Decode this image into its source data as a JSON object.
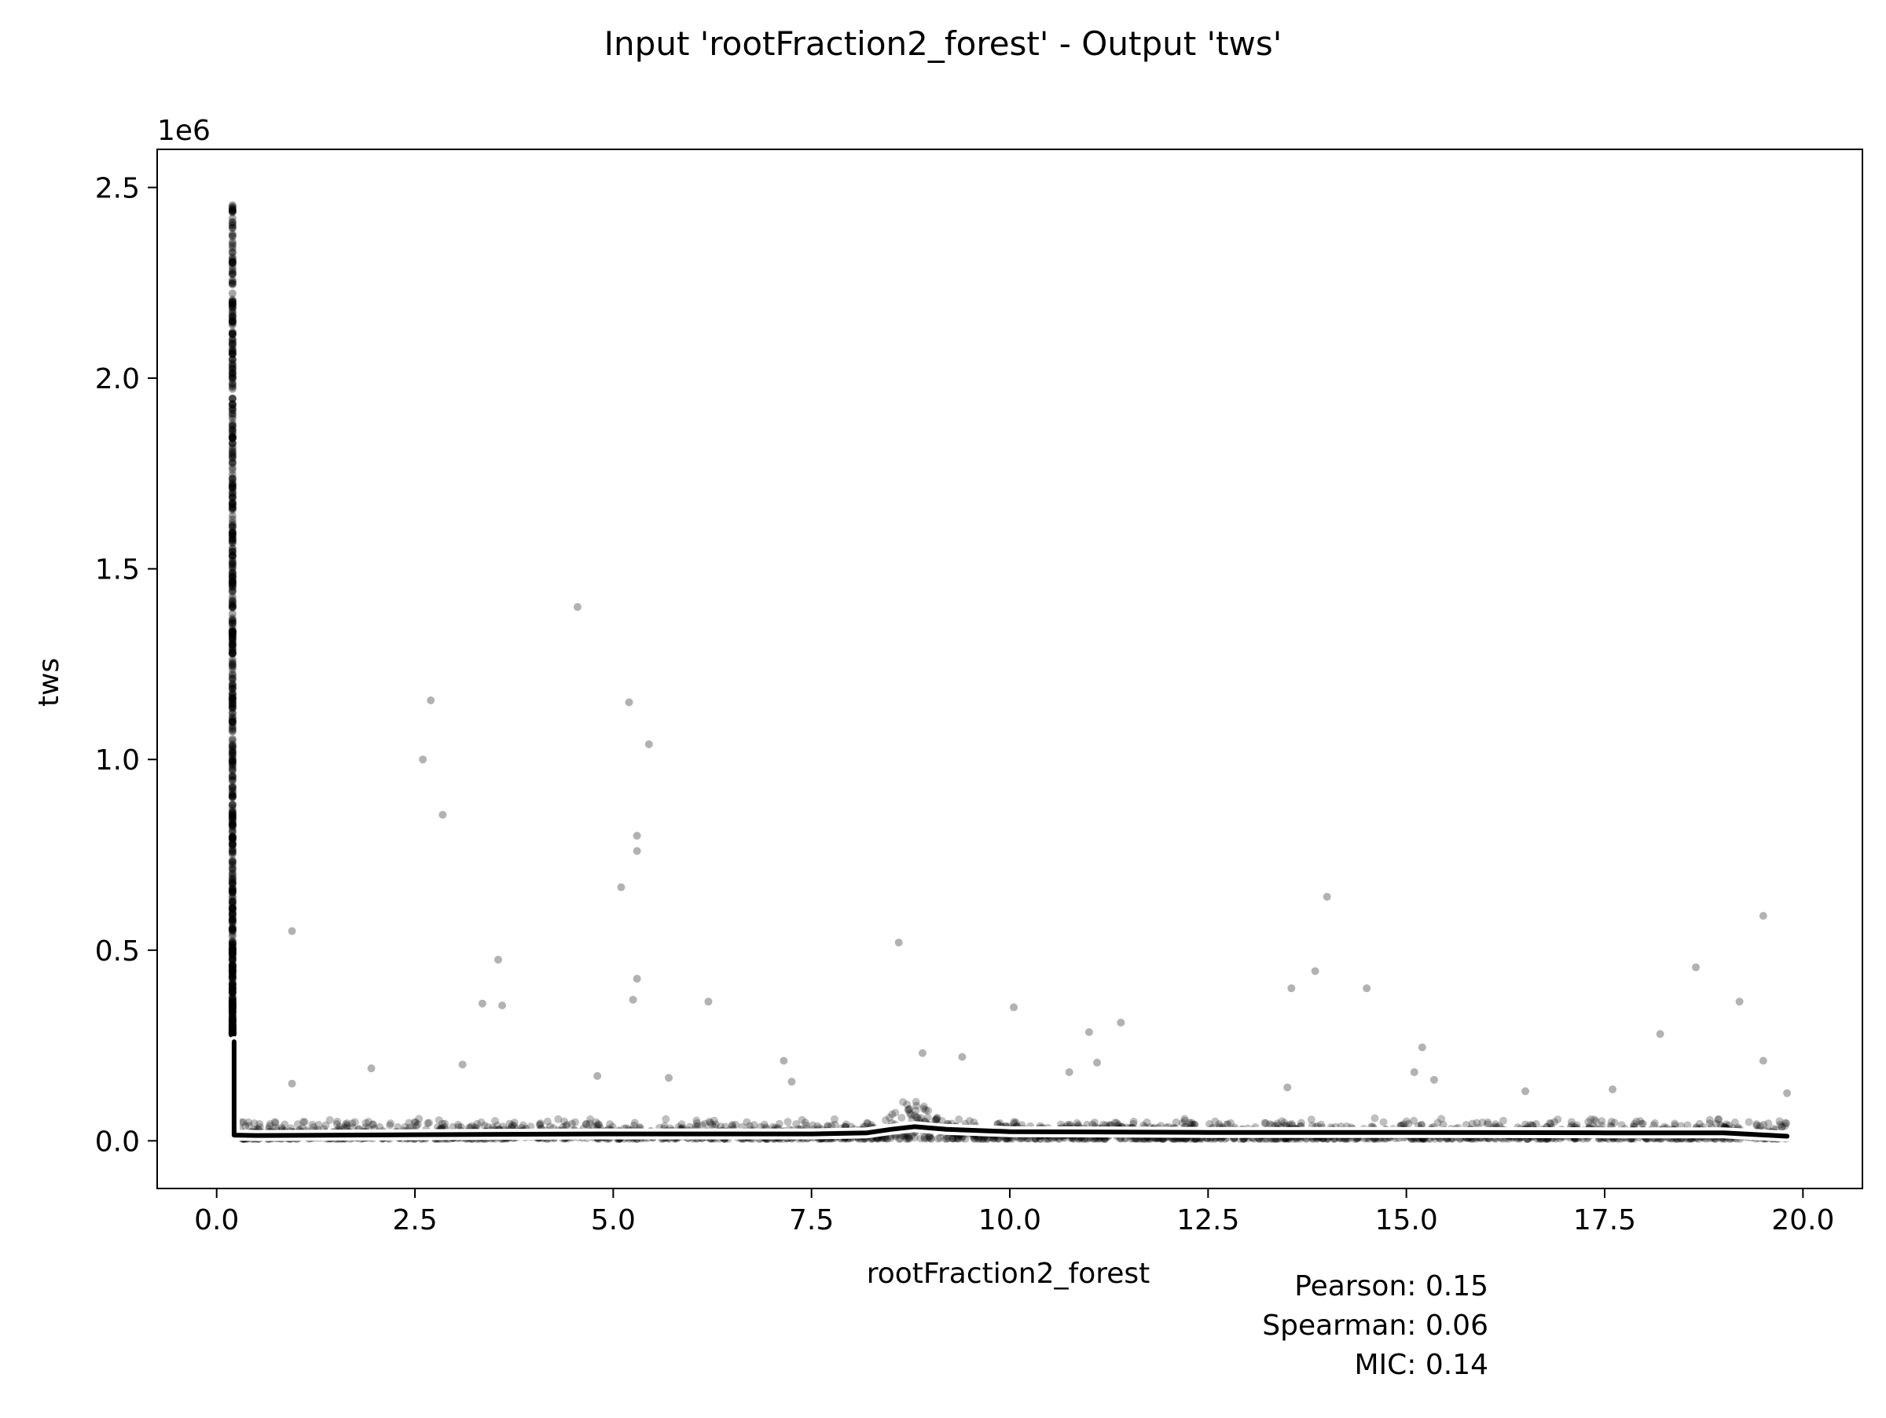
{
  "figure": {
    "title": "Input 'rootFraction2_forest' - Output 'tws'",
    "stats": {
      "pearson": "Pearson: 0.15",
      "spearman": "Spearman: 0.06",
      "mic": "MIC: 0.14"
    }
  },
  "chart_data": {
    "type": "scatter",
    "title": "Input 'rootFraction2_forest' - Output 'tws'",
    "xlabel": "rootFraction2_forest",
    "ylabel": "tws",
    "y_offset_label": "1e6",
    "xlim": [
      -0.75,
      20.75
    ],
    "ylim": [
      -125000,
      2600000
    ],
    "x_ticks": [
      0.0,
      2.5,
      5.0,
      7.5,
      10.0,
      12.5,
      15.0,
      17.5,
      20.0
    ],
    "x_tick_labels": [
      "0.0",
      "2.5",
      "5.0",
      "7.5",
      "10.0",
      "12.5",
      "15.0",
      "17.5",
      "20.0"
    ],
    "y_ticks": [
      0,
      500000,
      1000000,
      1500000,
      2000000,
      2500000
    ],
    "y_tick_labels": [
      "0.0",
      "0.5",
      "1.0",
      "1.5",
      "2.0",
      "2.5"
    ],
    "grid": false,
    "legend": "none",
    "point_color": "#000000",
    "point_opacity": 0.25,
    "line_color": "#000000",
    "line_outline_color": "#ffffff",
    "series": [
      {
        "kind": "scatter",
        "points": [
          [
            0.2,
            2450000
          ],
          [
            0.2,
            2400000
          ],
          [
            0.2,
            2300000
          ],
          [
            0.2,
            2200000
          ],
          [
            0.2,
            2100000
          ],
          [
            0.2,
            2000000
          ],
          [
            0.2,
            1900000
          ],
          [
            0.2,
            1800000
          ],
          [
            0.2,
            1700000
          ],
          [
            0.2,
            1600000
          ],
          [
            0.2,
            1500000
          ],
          [
            0.2,
            1400000
          ],
          [
            0.2,
            1300000
          ],
          [
            0.2,
            1200000
          ],
          [
            0.2,
            1100000
          ],
          [
            0.2,
            1000000
          ],
          [
            0.2,
            900000
          ],
          [
            0.2,
            800000
          ],
          [
            0.2,
            700000
          ],
          [
            0.2,
            600000
          ],
          [
            0.2,
            500000
          ],
          [
            0.2,
            400000
          ],
          [
            0.2,
            300000
          ],
          [
            0.95,
            550000
          ],
          [
            2.6,
            1000000
          ],
          [
            2.7,
            1155000
          ],
          [
            2.85,
            855000
          ],
          [
            3.35,
            360000
          ],
          [
            3.55,
            475000
          ],
          [
            3.6,
            355000
          ],
          [
            4.55,
            1400000
          ],
          [
            5.1,
            665000
          ],
          [
            5.2,
            1150000
          ],
          [
            5.25,
            370000
          ],
          [
            5.3,
            800000
          ],
          [
            5.3,
            760000
          ],
          [
            5.3,
            425000
          ],
          [
            5.45,
            1040000
          ],
          [
            6.2,
            365000
          ],
          [
            8.6,
            520000
          ],
          [
            10.05,
            350000
          ],
          [
            11.0,
            285000
          ],
          [
            11.4,
            310000
          ],
          [
            13.55,
            400000
          ],
          [
            13.85,
            445000
          ],
          [
            14.0,
            640000
          ],
          [
            14.5,
            400000
          ],
          [
            15.2,
            245000
          ],
          [
            18.2,
            280000
          ],
          [
            18.65,
            455000
          ],
          [
            19.2,
            365000
          ],
          [
            19.5,
            590000
          ],
          [
            19.5,
            210000
          ],
          [
            1.95,
            190000
          ],
          [
            3.1,
            200000
          ],
          [
            7.15,
            210000
          ],
          [
            8.9,
            230000
          ],
          [
            9.4,
            220000
          ],
          [
            15.35,
            160000
          ],
          [
            15.1,
            180000
          ],
          [
            10.75,
            180000
          ],
          [
            11.1,
            205000
          ],
          [
            0.95,
            150000
          ],
          [
            4.8,
            170000
          ],
          [
            5.7,
            165000
          ],
          [
            7.25,
            155000
          ],
          [
            13.5,
            140000
          ],
          [
            17.6,
            135000
          ],
          [
            16.5,
            130000
          ],
          [
            19.8,
            125000
          ]
        ]
      },
      {
        "kind": "line",
        "name": "",
        "x": [
          0.22,
          0.22,
          0.5,
          2.5,
          5.0,
          7.5,
          8.2,
          8.5,
          8.8,
          9.2,
          10.0,
          12.5,
          15.0,
          17.5,
          19.0,
          19.8
        ],
        "y": [
          260000,
          15000,
          14000,
          16000,
          18000,
          18000,
          21000,
          30000,
          37000,
          30000,
          24000,
          22000,
          22000,
          21000,
          21000,
          12000
        ]
      }
    ]
  }
}
